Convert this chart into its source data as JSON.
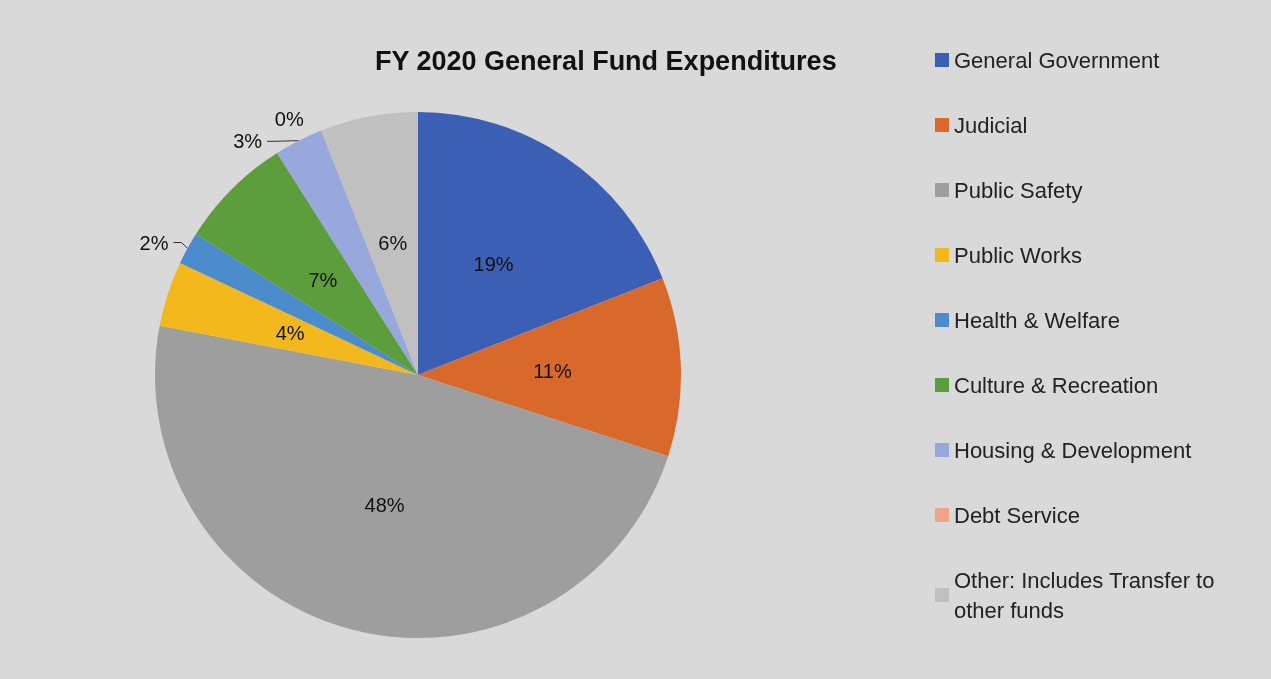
{
  "chart_data": {
    "type": "pie",
    "title": "FY 2020 General Fund Expenditures",
    "categories": [
      "General Government",
      "Judicial",
      "Public Safety",
      "Public Works",
      "Health & Welfare",
      "Culture & Recreation",
      "Housing & Development",
      "Debt Service",
      "Other: Includes Transfer to other funds"
    ],
    "values": [
      19,
      11,
      48,
      4,
      2,
      7,
      3,
      0,
      6
    ],
    "value_labels": [
      "19%",
      "11%",
      "48%",
      "4%",
      "2%",
      "7%",
      "3%",
      "0%",
      "6%"
    ],
    "colors": [
      "#3a5fb4",
      "#d9692a",
      "#9e9e9e",
      "#f2b81c",
      "#4a8ccc",
      "#5d9e3c",
      "#98a8dd",
      "#f0a48c",
      "#c0c0c0"
    ],
    "legend": "right"
  }
}
